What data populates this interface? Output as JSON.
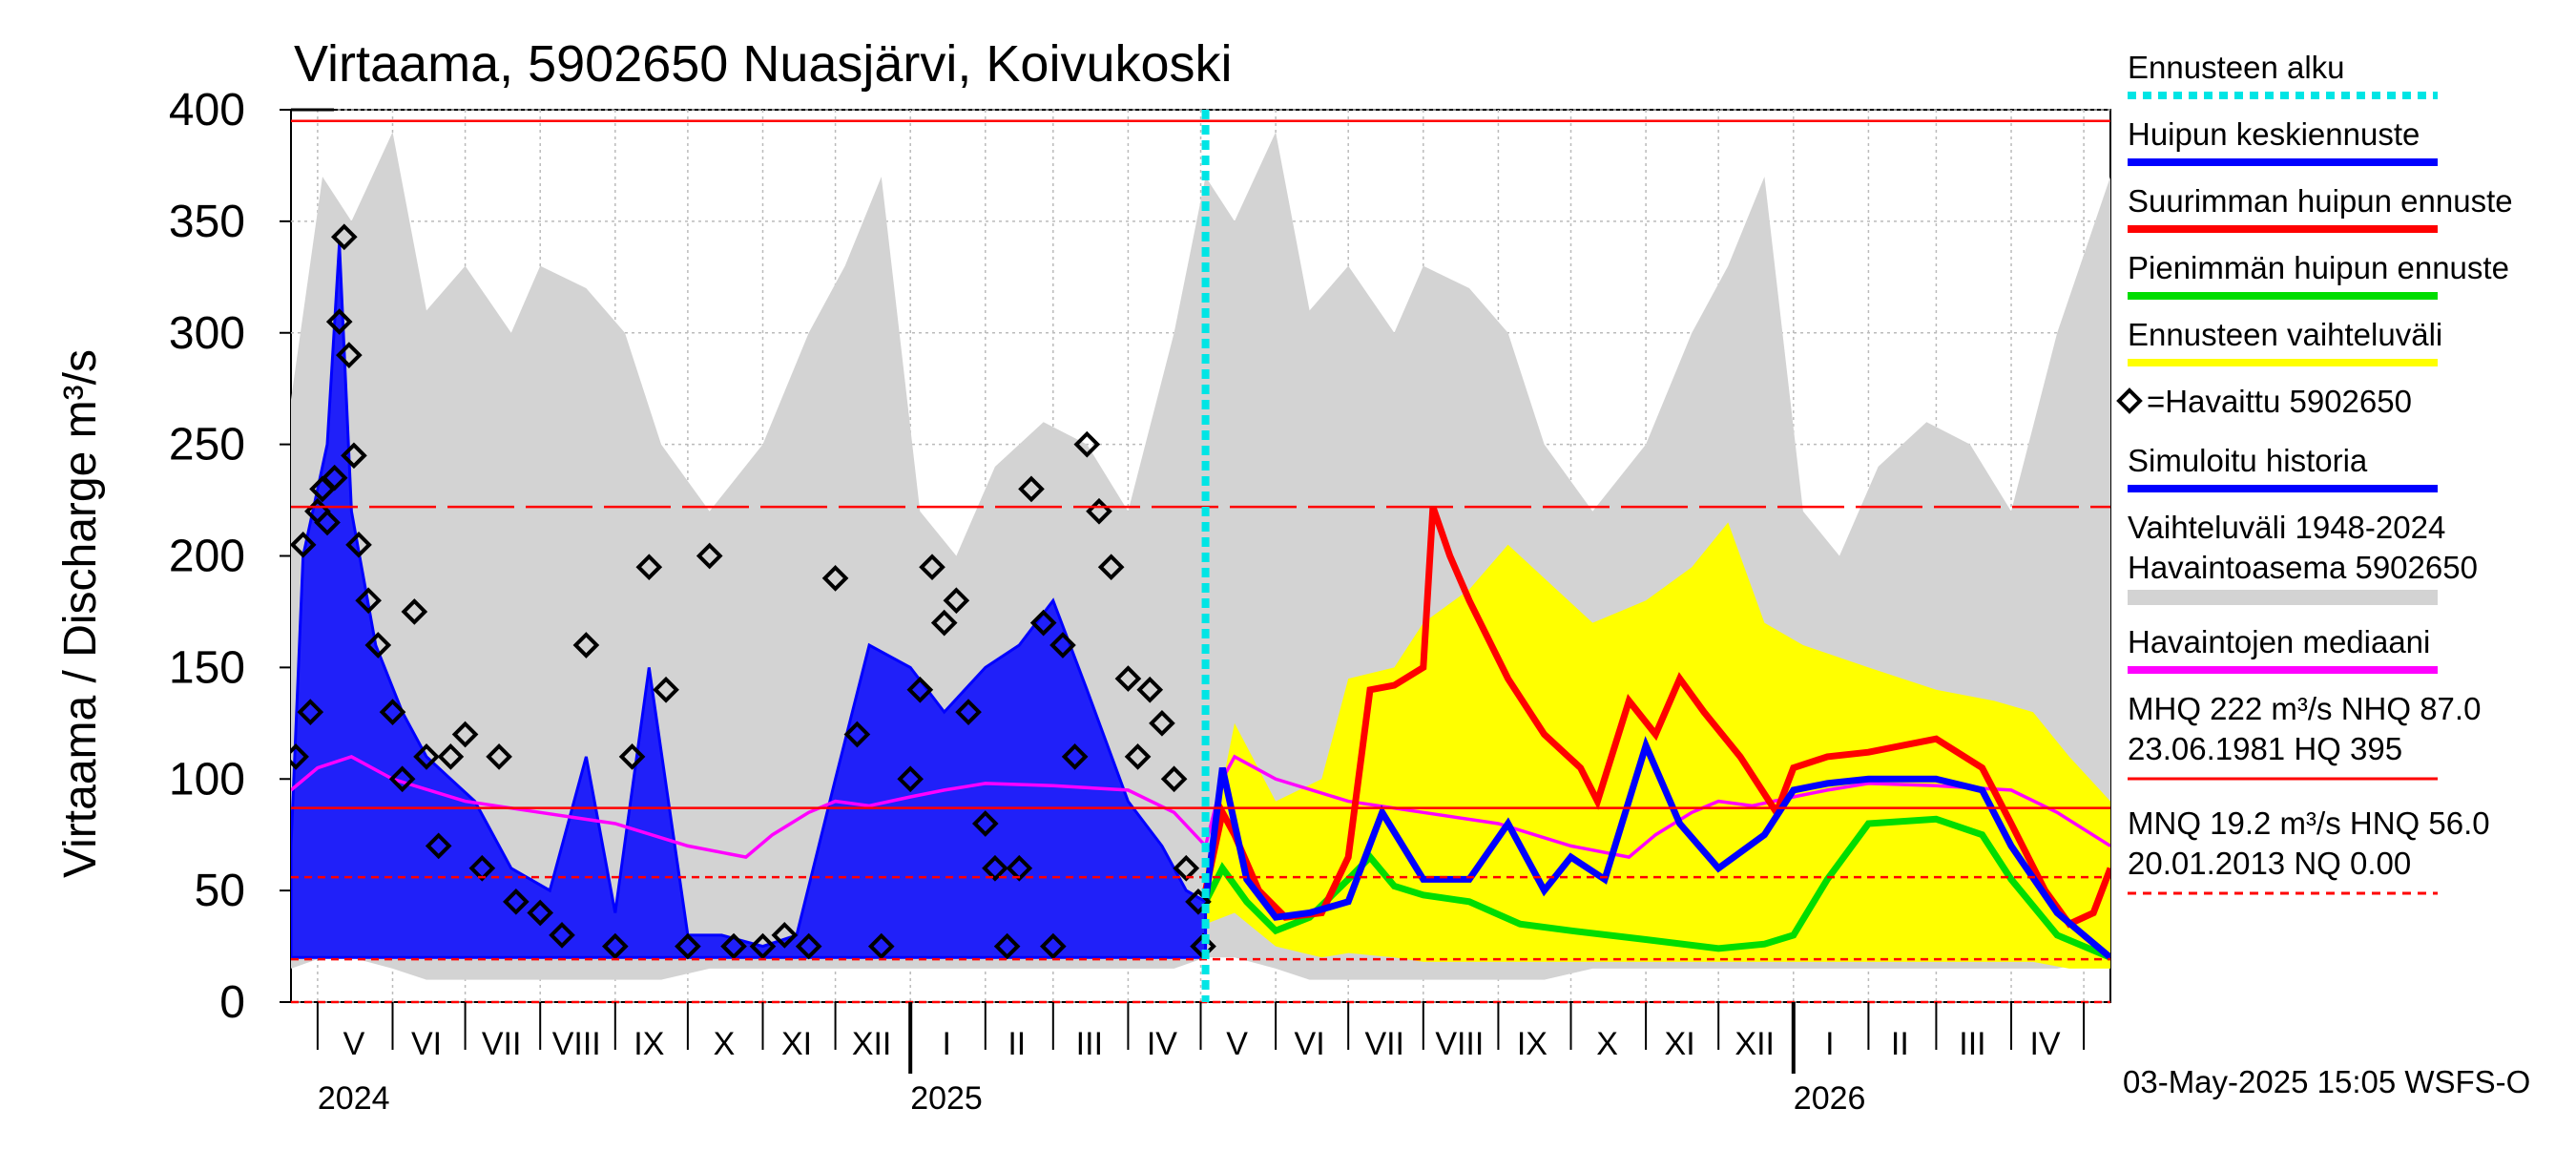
{
  "chart_data": {
    "type": "line",
    "title": "Virtaama, 5902650 Nuasjärvi, Koivukoski",
    "ylabel": "Virtaama / Discharge    m³/s",
    "ylim": [
      0,
      400
    ],
    "yticks": [
      0,
      50,
      100,
      150,
      200,
      250,
      300,
      350,
      400
    ],
    "x_start": "2024-04-20",
    "x_end": "2026-05-12",
    "forecast_start": "2025-05-03",
    "month_labels": [
      {
        "label": "V",
        "date": "2024-05-16"
      },
      {
        "label": "VI",
        "date": "2024-06-15"
      },
      {
        "label": "VII",
        "date": "2024-07-16"
      },
      {
        "label": "VIII",
        "date": "2024-08-16"
      },
      {
        "label": "IX",
        "date": "2024-09-15"
      },
      {
        "label": "X",
        "date": "2024-10-16"
      },
      {
        "label": "XI",
        "date": "2024-11-15"
      },
      {
        "label": "XII",
        "date": "2024-12-16"
      },
      {
        "label": "I",
        "date": "2025-01-16"
      },
      {
        "label": "II",
        "date": "2025-02-14"
      },
      {
        "label": "III",
        "date": "2025-03-16"
      },
      {
        "label": "IV",
        "date": "2025-04-15"
      },
      {
        "label": "V",
        "date": "2025-05-16"
      },
      {
        "label": "VI",
        "date": "2025-06-15"
      },
      {
        "label": "VII",
        "date": "2025-07-16"
      },
      {
        "label": "VIII",
        "date": "2025-08-16"
      },
      {
        "label": "IX",
        "date": "2025-09-15"
      },
      {
        "label": "X",
        "date": "2025-10-16"
      },
      {
        "label": "XI",
        "date": "2025-11-15"
      },
      {
        "label": "XII",
        "date": "2025-12-16"
      },
      {
        "label": "I",
        "date": "2026-01-16"
      },
      {
        "label": "II",
        "date": "2026-02-14"
      },
      {
        "label": "III",
        "date": "2026-03-16"
      },
      {
        "label": "IV",
        "date": "2026-04-15"
      }
    ],
    "month_boundaries": [
      "2024-05-01",
      "2024-06-01",
      "2024-07-01",
      "2024-08-01",
      "2024-09-01",
      "2024-10-01",
      "2024-11-01",
      "2024-12-01",
      "2025-01-01",
      "2025-02-01",
      "2025-03-01",
      "2025-04-01",
      "2025-05-01",
      "2025-06-01",
      "2025-07-01",
      "2025-08-01",
      "2025-09-01",
      "2025-10-01",
      "2025-11-01",
      "2025-12-01",
      "2026-01-01",
      "2026-02-01",
      "2026-03-01",
      "2026-04-01",
      "2026-05-01"
    ],
    "year_labels": [
      {
        "label": "2024",
        "date": "2024-05-01"
      },
      {
        "label": "2025",
        "date": "2025-01-01"
      },
      {
        "label": "2026",
        "date": "2026-01-01"
      }
    ],
    "reference_lines": [
      {
        "name": "HQ",
        "value": 395,
        "style": "solid",
        "color": "#ff0000"
      },
      {
        "name": "MHQ",
        "value": 222,
        "style": "longdash",
        "color": "#ff0000"
      },
      {
        "name": "NHQ",
        "value": 87.0,
        "style": "solid",
        "color": "#ff0000"
      },
      {
        "name": "HNQ",
        "value": 56.0,
        "style": "dash",
        "color": "#ff0000"
      },
      {
        "name": "MNQ",
        "value": 19.2,
        "style": "dash",
        "color": "#ff0000"
      },
      {
        "name": "NQ",
        "value": 0.0,
        "style": "dash",
        "color": "#ff0000"
      }
    ],
    "series": [
      {
        "name": "Vaihteluväli 1948-2024  Havaintoasema 5902650",
        "type": "band",
        "color": "#d3d3d3",
        "x": [
          "2024-04-20",
          "2024-05-03",
          "2024-05-15",
          "2024-06-01",
          "2024-06-15",
          "2024-07-01",
          "2024-07-20",
          "2024-08-01",
          "2024-08-20",
          "2024-09-05",
          "2024-09-20",
          "2024-10-10",
          "2024-11-01",
          "2024-11-20",
          "2024-12-05",
          "2024-12-20",
          "2025-01-05",
          "2025-01-20",
          "2025-02-05",
          "2025-02-25",
          "2025-03-15",
          "2025-04-01",
          "2025-04-20",
          "2025-05-03",
          "2025-05-15",
          "2025-06-01",
          "2025-06-15",
          "2025-07-01",
          "2025-07-20",
          "2025-08-01",
          "2025-08-20",
          "2025-09-05",
          "2025-09-20",
          "2025-10-10",
          "2025-11-01",
          "2025-11-20",
          "2025-12-05",
          "2025-12-20",
          "2026-01-05",
          "2026-01-20",
          "2026-02-05",
          "2026-02-25",
          "2026-03-15",
          "2026-04-01",
          "2026-04-20",
          "2026-05-12"
        ],
        "low": [
          15,
          20,
          20,
          15,
          10,
          10,
          10,
          10,
          10,
          10,
          10,
          15,
          15,
          15,
          15,
          15,
          15,
          15,
          15,
          15,
          15,
          15,
          15,
          20,
          20,
          15,
          10,
          10,
          10,
          10,
          10,
          10,
          10,
          15,
          15,
          15,
          15,
          15,
          15,
          15,
          15,
          15,
          15,
          15,
          15,
          20
        ],
        "high": [
          270,
          370,
          350,
          390,
          310,
          330,
          300,
          330,
          320,
          300,
          250,
          220,
          250,
          300,
          330,
          370,
          220,
          200,
          240,
          260,
          250,
          220,
          300,
          370,
          350,
          390,
          310,
          330,
          300,
          330,
          320,
          300,
          250,
          220,
          250,
          300,
          330,
          370,
          220,
          200,
          240,
          260,
          250,
          220,
          300,
          370
        ]
      },
      {
        "name": "Ennusteen vaihteluväli",
        "type": "band",
        "color": "#ffff00",
        "x": [
          "2025-05-03",
          "2025-05-15",
          "2025-06-01",
          "2025-06-20",
          "2025-07-01",
          "2025-07-20",
          "2025-08-01",
          "2025-08-20",
          "2025-09-05",
          "2025-09-20",
          "2025-10-10",
          "2025-11-01",
          "2025-11-20",
          "2025-12-05",
          "2025-12-20",
          "2026-01-05",
          "2026-02-01",
          "2026-03-01",
          "2026-03-25",
          "2026-04-10",
          "2026-04-25",
          "2026-05-12"
        ],
        "low": [
          35,
          40,
          25,
          20,
          22,
          20,
          18,
          18,
          18,
          18,
          18,
          18,
          18,
          18,
          18,
          18,
          18,
          18,
          18,
          18,
          15,
          15
        ],
        "high": [
          60,
          125,
          90,
          100,
          145,
          150,
          170,
          185,
          205,
          190,
          170,
          180,
          195,
          215,
          170,
          160,
          150,
          140,
          135,
          130,
          110,
          90
        ]
      },
      {
        "name": "Simuloitu historia",
        "type": "line",
        "color": "#0000ff",
        "x": [
          "2024-04-20",
          "2024-04-25",
          "2024-05-01",
          "2024-05-05",
          "2024-05-10",
          "2024-05-15",
          "2024-05-25",
          "2024-06-05",
          "2024-06-15",
          "2024-06-25",
          "2024-07-05",
          "2024-07-20",
          "2024-08-05",
          "2024-08-20",
          "2024-09-01",
          "2024-09-15",
          "2024-10-01",
          "2024-10-15",
          "2024-11-01",
          "2024-11-15",
          "2024-12-01",
          "2024-12-15",
          "2025-01-01",
          "2025-01-15",
          "2025-02-01",
          "2025-02-15",
          "2025-03-01",
          "2025-03-15",
          "2025-04-01",
          "2025-04-15",
          "2025-04-25",
          "2025-05-03"
        ],
        "y": [
          70,
          200,
          230,
          250,
          340,
          220,
          160,
          130,
          110,
          100,
          90,
          60,
          50,
          110,
          40,
          150,
          30,
          30,
          25,
          30,
          100,
          160,
          150,
          130,
          150,
          160,
          180,
          140,
          90,
          70,
          50,
          45
        ]
      },
      {
        "name": "Havaittu 5902650",
        "type": "scatter",
        "color": "#000000",
        "x": [
          "2024-04-22",
          "2024-04-25",
          "2024-04-28",
          "2024-05-01",
          "2024-05-03",
          "2024-05-05",
          "2024-05-08",
          "2024-05-10",
          "2024-05-12",
          "2024-05-14",
          "2024-05-16",
          "2024-05-18",
          "2024-05-22",
          "2024-05-26",
          "2024-06-01",
          "2024-06-05",
          "2024-06-10",
          "2024-06-15",
          "2024-06-20",
          "2024-06-25",
          "2024-07-01",
          "2024-07-08",
          "2024-07-15",
          "2024-07-22",
          "2024-08-01",
          "2024-08-10",
          "2024-08-20",
          "2024-09-01",
          "2024-09-08",
          "2024-09-15",
          "2024-09-22",
          "2024-10-01",
          "2024-10-10",
          "2024-10-20",
          "2024-11-01",
          "2024-11-10",
          "2024-11-20",
          "2024-12-01",
          "2024-12-10",
          "2024-12-20",
          "2025-01-01",
          "2025-01-05",
          "2025-01-10",
          "2025-01-15",
          "2025-01-20",
          "2025-01-25",
          "2025-02-01",
          "2025-02-05",
          "2025-02-10",
          "2025-02-15",
          "2025-02-20",
          "2025-02-25",
          "2025-03-01",
          "2025-03-05",
          "2025-03-10",
          "2025-03-15",
          "2025-03-20",
          "2025-03-25",
          "2025-04-01",
          "2025-04-05",
          "2025-04-10",
          "2025-04-15",
          "2025-04-20",
          "2025-04-25",
          "2025-04-30",
          "2025-05-02"
        ],
        "y": [
          110,
          205,
          130,
          220,
          230,
          215,
          235,
          305,
          343,
          290,
          245,
          205,
          180,
          160,
          130,
          100,
          175,
          110,
          70,
          110,
          120,
          60,
          110,
          45,
          40,
          30,
          160,
          25,
          110,
          195,
          140,
          25,
          200,
          25,
          25,
          30,
          25,
          190,
          120,
          25,
          100,
          140,
          195,
          170,
          180,
          130,
          80,
          60,
          25,
          60,
          230,
          170,
          25,
          160,
          110,
          250,
          220,
          195,
          145,
          110,
          140,
          125,
          100,
          60,
          45,
          25
        ]
      },
      {
        "name": "Havaintojen mediaani",
        "type": "line",
        "color": "#ff00ff",
        "x": [
          "2024-04-20",
          "2024-05-01",
          "2024-05-15",
          "2024-06-01",
          "2024-07-01",
          "2024-08-01",
          "2024-09-01",
          "2024-10-01",
          "2024-10-25",
          "2024-11-05",
          "2024-11-20",
          "2024-12-01",
          "2024-12-15",
          "2025-01-01",
          "2025-01-15",
          "2025-02-01",
          "2025-03-01",
          "2025-04-01",
          "2025-04-20",
          "2025-05-03",
          "2025-05-10",
          "2025-05-15",
          "2025-06-01",
          "2025-07-01",
          "2025-08-01",
          "2025-09-01",
          "2025-10-01",
          "2025-10-25",
          "2025-11-05",
          "2025-11-20",
          "2025-12-01",
          "2025-12-15",
          "2026-01-01",
          "2026-01-15",
          "2026-02-01",
          "2026-03-01",
          "2026-04-01",
          "2026-04-20",
          "2026-05-12"
        ],
        "y": [
          95,
          105,
          110,
          100,
          90,
          85,
          80,
          70,
          65,
          75,
          85,
          90,
          88,
          92,
          95,
          98,
          97,
          95,
          85,
          70,
          100,
          110,
          100,
          90,
          85,
          80,
          70,
          65,
          75,
          85,
          90,
          88,
          92,
          95,
          98,
          97,
          95,
          85,
          70
        ]
      },
      {
        "name": "Suurimman huipun ennuste",
        "type": "line",
        "color": "#ff0000",
        "x": [
          "2025-05-03",
          "2025-05-10",
          "2025-05-15",
          "2025-05-25",
          "2025-06-05",
          "2025-06-20",
          "2025-07-01",
          "2025-07-10",
          "2025-07-20",
          "2025-08-01",
          "2025-08-05",
          "2025-08-12",
          "2025-08-20",
          "2025-09-05",
          "2025-09-20",
          "2025-10-05",
          "2025-10-12",
          "2025-10-25",
          "2025-11-05",
          "2025-11-15",
          "2025-11-25",
          "2025-12-10",
          "2025-12-25",
          "2026-01-01",
          "2026-01-15",
          "2026-02-01",
          "2026-03-01",
          "2026-03-20",
          "2026-04-01",
          "2026-04-15",
          "2026-04-25",
          "2026-05-05",
          "2026-05-12"
        ],
        "y": [
          50,
          85,
          75,
          50,
          38,
          40,
          65,
          140,
          142,
          150,
          222,
          200,
          180,
          145,
          120,
          105,
          90,
          135,
          120,
          145,
          130,
          110,
          85,
          105,
          110,
          112,
          118,
          105,
          80,
          50,
          35,
          40,
          60
        ]
      },
      {
        "name": "Pienimmän huipun ennuste",
        "type": "line",
        "color": "#00dd00",
        "x": [
          "2025-05-03",
          "2025-05-10",
          "2025-05-20",
          "2025-06-01",
          "2025-06-15",
          "2025-07-01",
          "2025-07-10",
          "2025-07-20",
          "2025-08-01",
          "2025-08-20",
          "2025-09-10",
          "2025-10-01",
          "2025-11-01",
          "2025-12-01",
          "2025-12-20",
          "2026-01-01",
          "2026-01-15",
          "2026-02-01",
          "2026-03-01",
          "2026-03-20",
          "2026-04-01",
          "2026-04-20",
          "2026-05-12"
        ],
        "y": [
          45,
          60,
          45,
          32,
          38,
          55,
          65,
          52,
          48,
          45,
          35,
          32,
          28,
          24,
          26,
          30,
          55,
          80,
          82,
          75,
          55,
          30,
          20
        ]
      },
      {
        "name": "Huipun keskiennuste",
        "type": "line",
        "color": "#0000ff",
        "x": [
          "2025-05-03",
          "2025-05-10",
          "2025-05-20",
          "2025-06-01",
          "2025-06-15",
          "2025-07-01",
          "2025-07-15",
          "2025-08-01",
          "2025-08-20",
          "2025-09-05",
          "2025-09-20",
          "2025-10-01",
          "2025-10-15",
          "2025-11-01",
          "2025-11-15",
          "2025-12-01",
          "2025-12-20",
          "2026-01-01",
          "2026-01-15",
          "2026-02-01",
          "2026-03-01",
          "2026-03-20",
          "2026-04-01",
          "2026-04-20",
          "2026-05-12"
        ],
        "y": [
          45,
          105,
          55,
          38,
          40,
          45,
          85,
          55,
          55,
          80,
          50,
          65,
          55,
          115,
          80,
          60,
          75,
          95,
          98,
          100,
          100,
          95,
          70,
          40,
          20
        ]
      }
    ],
    "legend": {
      "placement": "right",
      "items": [
        {
          "label": "Ennusteen alku",
          "color": "#00e5e5",
          "style": "dash"
        },
        {
          "label": "Huipun keskiennuste",
          "color": "#0000ff",
          "style": "line"
        },
        {
          "label": "Suurimman huipun ennuste",
          "color": "#ff0000",
          "style": "line"
        },
        {
          "label": "Pienimmän huipun ennuste",
          "color": "#00dd00",
          "style": "line"
        },
        {
          "label": "Ennusteen vaihteluväli",
          "color": "#ffff00",
          "style": "line"
        },
        {
          "label": "=Havaittu 5902650",
          "color": "#000000",
          "style": "diamond"
        },
        {
          "label": "Simuloitu historia",
          "color": "#0000ff",
          "style": "line"
        },
        {
          "label": "Vaihteluväli 1948-2024",
          "label2": " Havaintoasema 5902650",
          "color": "#d3d3d3",
          "style": "thick"
        },
        {
          "label": "Havaintojen mediaani",
          "color": "#ff00ff",
          "style": "line"
        },
        {
          "label": "MHQ  222 m³/s NHQ 87.0",
          "label2": "23.06.1981 HQ  395",
          "color": "#ff0000",
          "style": "line"
        },
        {
          "label": "MNQ 19.2 m³/s HNQ 56.0",
          "label2": "20.01.2013 NQ 0.00",
          "color": "#ff0000",
          "style": "dash"
        }
      ]
    },
    "footer": "03-May-2025 15:05 WSFS-O"
  }
}
